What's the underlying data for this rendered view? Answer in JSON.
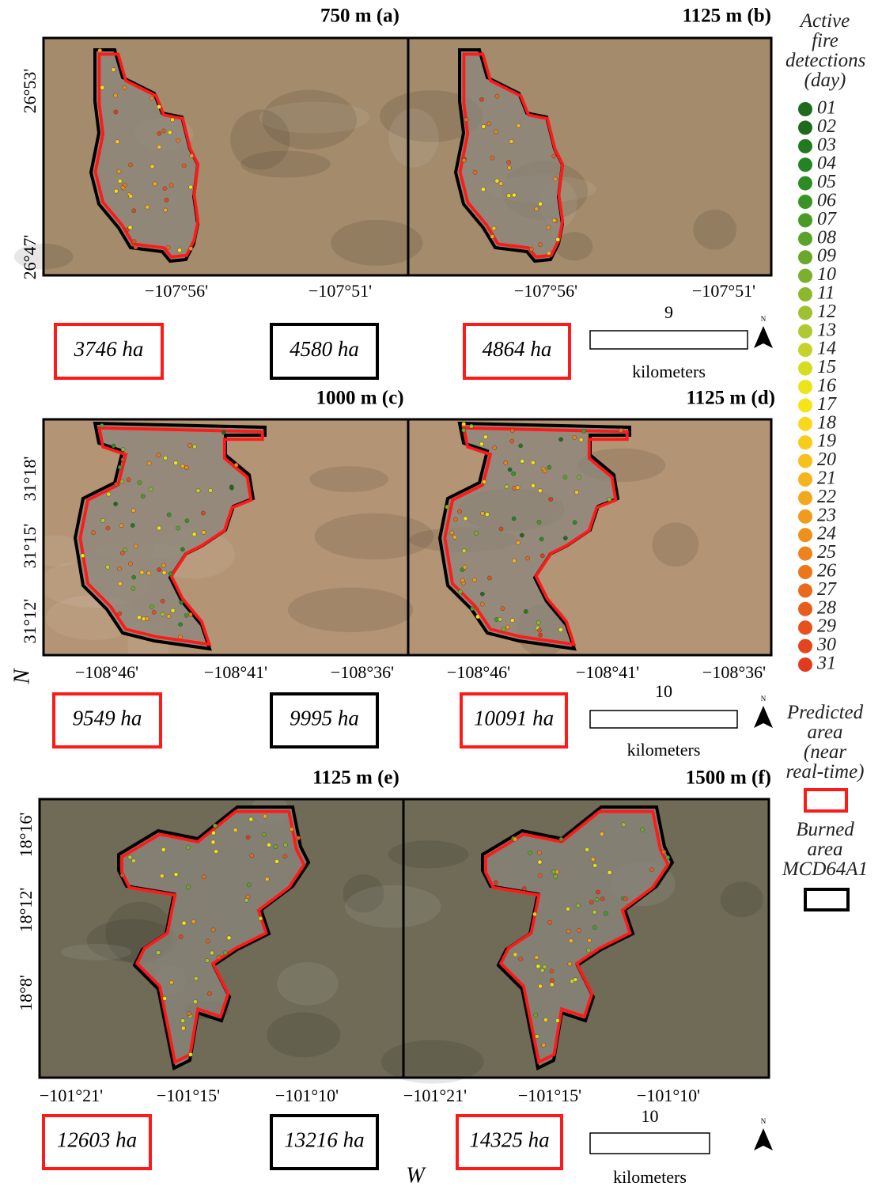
{
  "rows": [
    {
      "titles": [
        "750 m (a)",
        "1125 m (b)"
      ],
      "lat_labels": [
        "26°53'",
        "26°47'"
      ],
      "lon_labels": [
        "−107°56'",
        "−107°51'"
      ],
      "areas": [
        "3746 ha",
        "4580 ha",
        "4864 ha"
      ],
      "scale": {
        "value": "9",
        "unit": "kilometers"
      }
    },
    {
      "titles": [
        "1000 m (c)",
        "1125 m (d)"
      ],
      "lat_labels": [
        "31°18'",
        "31°15'",
        "31°12'"
      ],
      "lon_labels": [
        "−108°46'",
        "−108°41'",
        "−108°36'"
      ],
      "areas": [
        "9549 ha",
        "9995 ha",
        "10091 ha"
      ],
      "scale": {
        "value": "10",
        "unit": "kilometers"
      }
    },
    {
      "titles": [
        "1125 m (e)",
        "1500 m (f)"
      ],
      "lat_labels": [
        "18°16'",
        "18°12'",
        "18°8'"
      ],
      "lon_labels": [
        "−101°21'",
        "−101°15'",
        "−101°10'"
      ],
      "areas": [
        "12603 ha",
        "13216 ha",
        "14325 ha"
      ],
      "scale": {
        "value": "10",
        "unit": "kilometers"
      }
    }
  ],
  "north_label": "N",
  "axis_letters": {
    "lat": "N",
    "lon": "W"
  },
  "legend": {
    "title": "Active fire detections (day)",
    "days": [
      {
        "label": "01",
        "color": "#1e6b1e"
      },
      {
        "label": "02",
        "color": "#1e6b1e"
      },
      {
        "label": "03",
        "color": "#217a1f"
      },
      {
        "label": "04",
        "color": "#238522"
      },
      {
        "label": "05",
        "color": "#2a8c23"
      },
      {
        "label": "06",
        "color": "#3a9425"
      },
      {
        "label": "07",
        "color": "#4a9a27"
      },
      {
        "label": "08",
        "color": "#5aa32a"
      },
      {
        "label": "09",
        "color": "#6aa82c"
      },
      {
        "label": "10",
        "color": "#7bb02e"
      },
      {
        "label": "11",
        "color": "#8cb830"
      },
      {
        "label": "12",
        "color": "#9ec032"
      },
      {
        "label": "13",
        "color": "#b0c834"
      },
      {
        "label": "14",
        "color": "#c4d22a"
      },
      {
        "label": "15",
        "color": "#d8dc20"
      },
      {
        "label": "16",
        "color": "#ece418"
      },
      {
        "label": "17",
        "color": "#f5e41a"
      },
      {
        "label": "18",
        "color": "#f8d81c"
      },
      {
        "label": "19",
        "color": "#f8cc1c"
      },
      {
        "label": "20",
        "color": "#f7c01c"
      },
      {
        "label": "21",
        "color": "#f5b31c"
      },
      {
        "label": "22",
        "color": "#f3a71c"
      },
      {
        "label": "23",
        "color": "#f19b1c"
      },
      {
        "label": "24",
        "color": "#ef8f1c"
      },
      {
        "label": "25",
        "color": "#ed831c"
      },
      {
        "label": "26",
        "color": "#eb771c"
      },
      {
        "label": "27",
        "color": "#e96a1c"
      },
      {
        "label": "28",
        "color": "#e75e1c"
      },
      {
        "label": "29",
        "color": "#e5521c"
      },
      {
        "label": "30",
        "color": "#e3461c"
      },
      {
        "label": "31",
        "color": "#e13a1c"
      }
    ],
    "predicted": "Predicted area (near real-time)",
    "burned": "Burned area MCD64A1"
  }
}
